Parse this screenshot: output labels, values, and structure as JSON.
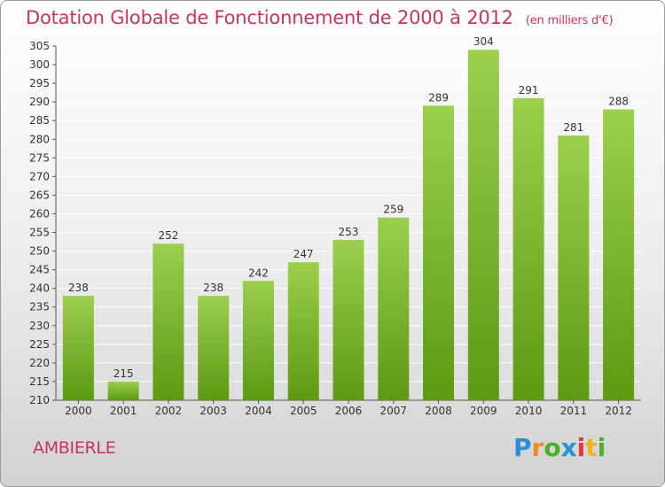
{
  "title": "Dotation Globale de Fonctionnement de 2000 à 2012",
  "subtitle": "(en milliers d'€)",
  "commune": "AMBIERLE",
  "logo": {
    "letters": [
      "P",
      "r",
      "o",
      "x",
      "i",
      "t",
      "i"
    ],
    "colors": [
      "#2a8fd4",
      "#f08a1c",
      "#4caf2a",
      "#2a8fd4",
      "#e03b3b",
      "#f0b41c",
      "#4caf2a"
    ]
  },
  "colors": {
    "bar_top": "#9ccf4c",
    "bar_bottom": "#5b9a12",
    "accent": "#c8355a"
  },
  "chart_data": {
    "type": "bar",
    "title": "Dotation Globale de Fonctionnement de 2000 à 2012",
    "subtitle": "(en milliers d'€)",
    "categories": [
      "2000",
      "2001",
      "2002",
      "2003",
      "2004",
      "2005",
      "2006",
      "2007",
      "2008",
      "2009",
      "2010",
      "2011",
      "2012"
    ],
    "values": [
      238,
      215,
      252,
      238,
      242,
      247,
      253,
      259,
      289,
      304,
      291,
      281,
      288
    ],
    "ylim": [
      210,
      305
    ],
    "yticks": [
      210,
      215,
      220,
      225,
      230,
      235,
      240,
      245,
      250,
      255,
      260,
      265,
      270,
      275,
      280,
      285,
      290,
      295,
      300,
      305
    ],
    "xlabel": "",
    "ylabel": "",
    "grid": true,
    "data_labels": true
  }
}
